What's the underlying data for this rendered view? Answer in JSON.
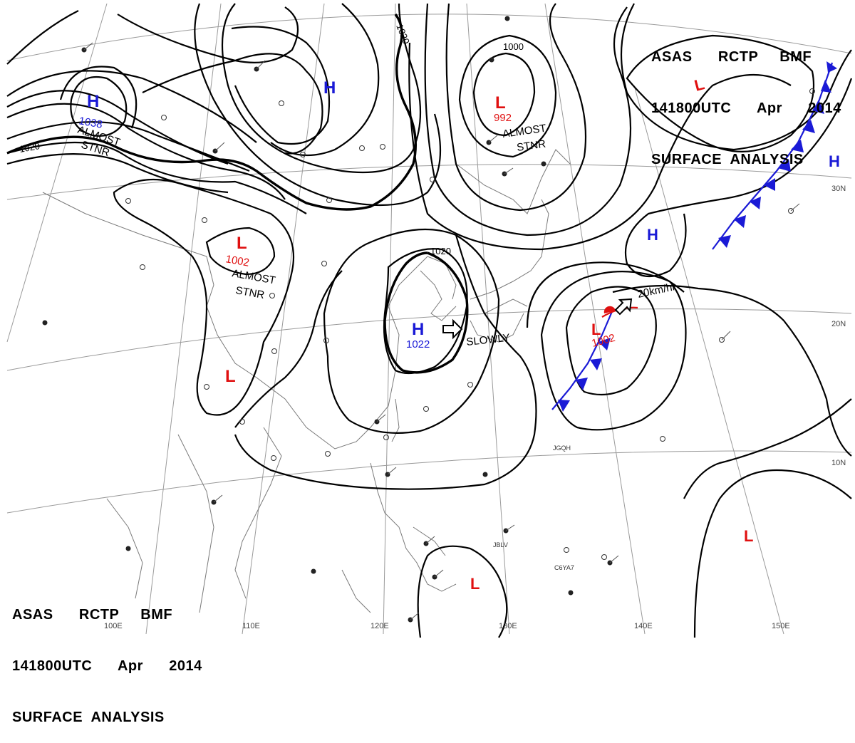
{
  "header": {
    "line1": "ASAS      RCTP     BMF",
    "line2": "141800UTC      Apr      2014",
    "line3": "SURFACE  ANALYSIS"
  },
  "pressure_systems": [
    {
      "type": "H",
      "value": "1038",
      "color": "#1a1ad6"
    },
    {
      "type": "H",
      "value": "",
      "color": "#1a1ad6"
    },
    {
      "type": "L",
      "value": "992",
      "color": "#e01010"
    },
    {
      "type": "L",
      "value": "",
      "color": "#e01010"
    },
    {
      "type": "L",
      "value": "1002",
      "color": "#e01010"
    },
    {
      "type": "L",
      "value": "",
      "color": "#e01010"
    },
    {
      "type": "H",
      "value": "1022",
      "color": "#1a1ad6"
    },
    {
      "type": "H",
      "value": "",
      "color": "#1a1ad6"
    },
    {
      "type": "L",
      "value": "1002",
      "color": "#e01010"
    },
    {
      "type": "H",
      "value": "",
      "color": "#1a1ad6"
    },
    {
      "type": "L",
      "value": "",
      "color": "#e01010"
    },
    {
      "type": "L",
      "value": "",
      "color": "#e01010"
    }
  ],
  "annotations": {
    "almost_stnr_1": [
      "ALMOST",
      "STNR"
    ],
    "almost_stnr_2": [
      "ALMOST",
      "STNR"
    ],
    "almost_stnr_3": [
      "ALMOST",
      "STNR"
    ],
    "slowly": "SLOWLY",
    "speed": "20km/hr"
  },
  "isobar_labels": [
    "1020",
    "1020",
    "1000",
    "1020"
  ],
  "lat_labels": [
    "30N",
    "20N",
    "10N"
  ],
  "lon_labels": [
    "100E",
    "110E",
    "120E",
    "130E",
    "140E",
    "150E"
  ],
  "stations": [
    "JBLV",
    "C6YA7",
    "JGQH"
  ],
  "colors": {
    "high": "#1a1ad6",
    "low": "#e01010",
    "cold_front": "#1a1ad6",
    "warm_front": "#e01010",
    "isobar": "#000000"
  }
}
